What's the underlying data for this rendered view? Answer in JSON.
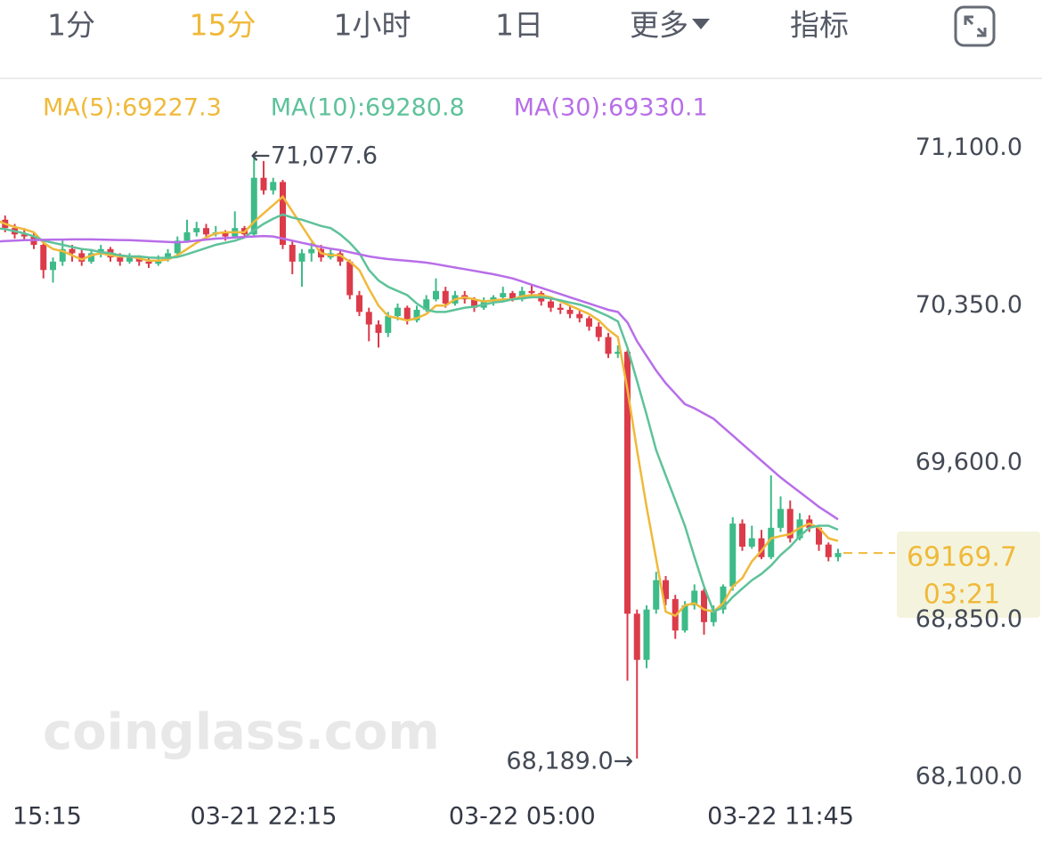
{
  "tabs": [
    "1分",
    "15分",
    "1小时",
    "1日",
    "更多",
    "指标"
  ],
  "selected_tab": 1,
  "watermark": "coinglass.com",
  "chart_data": {
    "type": "candlestick",
    "up_color": "#3dbb88",
    "down_color": "#dc3b4a",
    "ylim": [
      68000,
      71200
    ],
    "yticks": [
      {
        "value": 71100,
        "label": "71,100.0"
      },
      {
        "value": 70350,
        "label": "70,350.0"
      },
      {
        "value": 69600,
        "label": "69,600.0"
      },
      {
        "value": 68850,
        "label": "68,850.0"
      },
      {
        "value": 68100,
        "label": "68,100.0"
      }
    ],
    "categories": [
      "15:15",
      null,
      null,
      null,
      null,
      null,
      null,
      null,
      null,
      null,
      null,
      null,
      null,
      null,
      null,
      null,
      null,
      null,
      null,
      null,
      null,
      null,
      null,
      null,
      null,
      null,
      null,
      null,
      "03-21 22:15",
      null,
      null,
      null,
      null,
      null,
      null,
      null,
      null,
      null,
      null,
      null,
      null,
      null,
      null,
      null,
      null,
      null,
      null,
      null,
      null,
      null,
      null,
      null,
      null,
      null,
      null,
      "03-22 05:00",
      null,
      null,
      null,
      null,
      null,
      null,
      null,
      null,
      null,
      null,
      null,
      null,
      null,
      null,
      null,
      null,
      null,
      null,
      null,
      null,
      null,
      null,
      null,
      null,
      null,
      null,
      "03-22 11:45",
      null,
      null,
      null,
      null,
      null,
      null
    ],
    "candles": [
      [
        70780,
        70800,
        70740,
        70760
      ],
      [
        70760,
        70780,
        70700,
        70720
      ],
      [
        70720,
        70740,
        70670,
        70690
      ],
      [
        70690,
        70720,
        70660,
        70680
      ],
      [
        70680,
        70700,
        70620,
        70640
      ],
      [
        70640,
        70660,
        70480,
        70520
      ],
      [
        70520,
        70580,
        70460,
        70560
      ],
      [
        70560,
        70660,
        70540,
        70620
      ],
      [
        70620,
        70640,
        70560,
        70600
      ],
      [
        70600,
        70620,
        70540,
        70560
      ],
      [
        70560,
        70620,
        70550,
        70600
      ],
      [
        70600,
        70640,
        70580,
        70620
      ],
      [
        70620,
        70630,
        70560,
        70580
      ],
      [
        70580,
        70600,
        70540,
        70560
      ],
      [
        70560,
        70600,
        70550,
        70580
      ],
      [
        70580,
        70590,
        70540,
        70560
      ],
      [
        70560,
        70580,
        70530,
        70550
      ],
      [
        70550,
        70590,
        70540,
        70570
      ],
      [
        70570,
        70620,
        70560,
        70600
      ],
      [
        70600,
        70680,
        70590,
        70660
      ],
      [
        70660,
        70760,
        70650,
        70700
      ],
      [
        70700,
        70750,
        70680,
        70720
      ],
      [
        70720,
        70740,
        70670,
        70690
      ],
      [
        70690,
        70730,
        70680,
        70700
      ],
      [
        70700,
        70710,
        70660,
        70680
      ],
      [
        70680,
        70800,
        70670,
        70720
      ],
      [
        70720,
        70730,
        70680,
        70690
      ],
      [
        70690,
        71077.6,
        70680,
        70960
      ],
      [
        70960,
        71040,
        70880,
        70900
      ],
      [
        70900,
        70960,
        70880,
        70940
      ],
      [
        70940,
        70950,
        70620,
        70640
      ],
      [
        70640,
        70660,
        70500,
        70560
      ],
      [
        70560,
        70620,
        70440,
        70600
      ],
      [
        70600,
        70650,
        70560,
        70620
      ],
      [
        70620,
        70640,
        70560,
        70580
      ],
      [
        70580,
        70620,
        70570,
        70600
      ],
      [
        70600,
        70610,
        70540,
        70560
      ],
      [
        70560,
        70570,
        70380,
        70400
      ],
      [
        70400,
        70420,
        70300,
        70320
      ],
      [
        70320,
        70340,
        70180,
        70260
      ],
      [
        70260,
        70280,
        70150,
        70220
      ],
      [
        70220,
        70320,
        70200,
        70300
      ],
      [
        70300,
        70360,
        70280,
        70340
      ],
      [
        70340,
        70350,
        70260,
        70280
      ],
      [
        70280,
        70350,
        70270,
        70330
      ],
      [
        70330,
        70400,
        70320,
        70380
      ],
      [
        70380,
        70480,
        70370,
        70420
      ],
      [
        70420,
        70440,
        70340,
        70360
      ],
      [
        70360,
        70420,
        70350,
        70400
      ],
      [
        70400,
        70420,
        70360,
        70380
      ],
      [
        70380,
        70390,
        70320,
        70340
      ],
      [
        70340,
        70390,
        70330,
        70370
      ],
      [
        70370,
        70400,
        70350,
        70390
      ],
      [
        70390,
        70440,
        70380,
        70410
      ],
      [
        70410,
        70420,
        70370,
        70380
      ],
      [
        70380,
        70440,
        70370,
        70420
      ],
      [
        70420,
        70450,
        70400,
        70410
      ],
      [
        70410,
        70420,
        70350,
        70370
      ],
      [
        70370,
        70390,
        70320,
        70340
      ],
      [
        70340,
        70360,
        70310,
        70330
      ],
      [
        70330,
        70350,
        70290,
        70310
      ],
      [
        70310,
        70330,
        70270,
        70290
      ],
      [
        70290,
        70300,
        70230,
        70250
      ],
      [
        70250,
        70270,
        70180,
        70200
      ],
      [
        70200,
        70220,
        70100,
        70120
      ],
      [
        70120,
        70160,
        70100,
        70130
      ],
      [
        70130,
        70140,
        68560,
        68880
      ],
      [
        68880,
        68900,
        68189,
        68660
      ],
      [
        68660,
        68920,
        68620,
        68900
      ],
      [
        68900,
        69080,
        68880,
        69040
      ],
      [
        69040,
        69060,
        68920,
        68950
      ],
      [
        68950,
        68970,
        68760,
        68800
      ],
      [
        68800,
        68940,
        68790,
        68920
      ],
      [
        68920,
        69020,
        68900,
        68990
      ],
      [
        68990,
        69000,
        68780,
        68840
      ],
      [
        68840,
        68920,
        68820,
        68900
      ],
      [
        68900,
        69020,
        68880,
        69010
      ],
      [
        69010,
        69340,
        68990,
        69310
      ],
      [
        69310,
        69330,
        69180,
        69200
      ],
      [
        69200,
        69300,
        69190,
        69240
      ],
      [
        69240,
        69280,
        69140,
        69150
      ],
      [
        69150,
        69540,
        69140,
        69290
      ],
      [
        69290,
        69440,
        69270,
        69380
      ],
      [
        69380,
        69420,
        69220,
        69240
      ],
      [
        69240,
        69360,
        69230,
        69330
      ],
      [
        69330,
        69350,
        69270,
        69290
      ],
      [
        69290,
        69300,
        69180,
        69210
      ],
      [
        69210,
        69220,
        69130,
        69150
      ],
      [
        69150,
        69190,
        69130,
        69169.7
      ]
    ],
    "series": [
      {
        "name": "MA(5):69227.3",
        "color": "#f0b93a",
        "values": [
          70760,
          70740,
          70725,
          70715,
          70700,
          70650,
          70620,
          70610,
          70590,
          70570,
          70590,
          70600,
          70590,
          70585,
          70585,
          70575,
          70565,
          70565,
          70570,
          70590,
          70620,
          70650,
          70675,
          70695,
          70700,
          70700,
          70700,
          70750,
          70790,
          70830,
          70870,
          70800,
          70730,
          70660,
          70600,
          70590,
          70590,
          70560,
          70520,
          70430,
          70350,
          70300,
          70290,
          70280,
          70290,
          70310,
          70350,
          70350,
          70380,
          70390,
          70380,
          70370,
          70375,
          70380,
          70380,
          70395,
          70400,
          70400,
          70390,
          70370,
          70350,
          70330,
          70310,
          70280,
          70235,
          70200,
          69950,
          69660,
          69390,
          69140,
          68890,
          68870,
          68920,
          68930,
          68900,
          68890,
          68930,
          69010,
          69050,
          69130,
          69180,
          69240,
          69250,
          69260,
          69290,
          69310,
          69290,
          69240,
          69227.3
        ]
      },
      {
        "name": "MA(10):69280.8",
        "color": "#5ec29a",
        "values": [
          70720,
          70715,
          70705,
          70695,
          70680,
          70660,
          70650,
          70640,
          70630,
          70620,
          70615,
          70605,
          70600,
          70590,
          70585,
          70585,
          70580,
          70578,
          70578,
          70582,
          70595,
          70610,
          70625,
          70640,
          70650,
          70660,
          70675,
          70710,
          70740,
          70765,
          70785,
          70770,
          70760,
          70745,
          70730,
          70720,
          70690,
          70650,
          70600,
          70520,
          70470,
          70440,
          70420,
          70400,
          70360,
          70330,
          70320,
          70320,
          70330,
          70340,
          70345,
          70355,
          70365,
          70370,
          70380,
          70385,
          70390,
          70390,
          70385,
          70375,
          70365,
          70355,
          70340,
          70320,
          70300,
          70275,
          70150,
          69990,
          69830,
          69660,
          69540,
          69420,
          69300,
          69150,
          69010,
          68890,
          68910,
          68960,
          69000,
          69040,
          69070,
          69110,
          69160,
          69200,
          69250,
          69290,
          69300,
          69300,
          69280.8
        ]
      },
      {
        "name": "MA(30):69330.1",
        "color": "#b86ee8",
        "values": [
          70655,
          70658,
          70660,
          70662,
          70663,
          70664,
          70665,
          70665,
          70666,
          70666,
          70666,
          70665,
          70664,
          70663,
          70662,
          70660,
          70658,
          70656,
          70654,
          70652,
          70655,
          70660,
          70665,
          70670,
          70672,
          70675,
          70678,
          70680,
          70682,
          70680,
          70670,
          70660,
          70650,
          70640,
          70630,
          70622,
          70615,
          70605,
          70595,
          70585,
          70578,
          70572,
          70568,
          70564,
          70560,
          70555,
          70548,
          70540,
          70532,
          70524,
          70516,
          70508,
          70500,
          70490,
          70480,
          70465,
          70450,
          70435,
          70420,
          70405,
          70390,
          70375,
          70360,
          70345,
          70330,
          70320,
          70270,
          70180,
          70110,
          70040,
          69980,
          69930,
          69880,
          69860,
          69835,
          69810,
          69770,
          69730,
          69690,
          69650,
          69610,
          69570,
          69530,
          69495,
          69460,
          69425,
          69390,
          69360,
          69330.1
        ]
      }
    ],
    "annotations": [
      {
        "value": 71077.6,
        "label": "←71,077.6"
      },
      {
        "value": 68189,
        "label": "68,189.0→"
      }
    ],
    "last_price": 69169.7,
    "countdown": "03:21"
  }
}
